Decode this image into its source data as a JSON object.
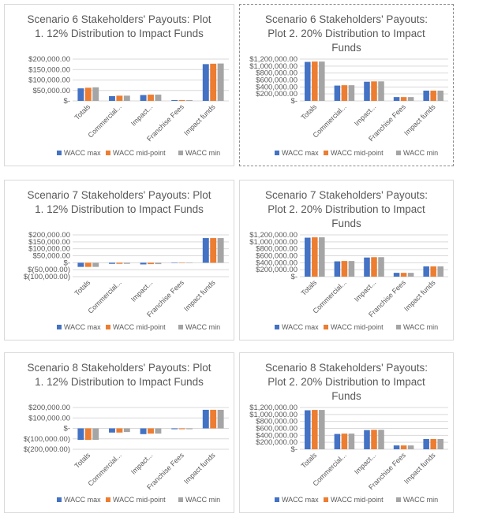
{
  "legend_colors": {
    "WACC max": "#4472c4",
    "WACC mid-point": "#ed7d31",
    "WACC min": "#a5a5a5"
  },
  "chart_data": [
    {
      "type": "bar",
      "title": "Scenario 6 Stakeholders' Payouts: Plot 1. 12% Distribution to Impact Funds",
      "categories": [
        "Totals",
        "Commercial...",
        "Impact...",
        "Franchise Fees",
        "Impact funds"
      ],
      "ylim": [
        0,
        200000
      ],
      "y_ticks": [
        0,
        50000,
        100000,
        150000,
        200000
      ],
      "grid": true,
      "legend": "bottom",
      "series": [
        {
          "name": "WACC max",
          "values": [
            60000,
            23000,
            28000,
            4000,
            176000
          ]
        },
        {
          "name": "WACC mid-point",
          "values": [
            63000,
            25000,
            30000,
            4000,
            178000
          ]
        },
        {
          "name": "WACC min",
          "values": [
            65000,
            25000,
            30000,
            4000,
            179000
          ]
        }
      ]
    },
    {
      "type": "bar",
      "title": "Scenario 6 Stakeholders' Payouts: Plot 2. 20% Distribution to Impact Funds",
      "categories": [
        "Totals",
        "Commercial...",
        "Impact...",
        "Franchise Fees",
        "Impact funds"
      ],
      "ylim": [
        0,
        1200000
      ],
      "y_ticks": [
        0,
        200000,
        400000,
        600000,
        800000,
        1000000,
        1200000
      ],
      "grid": true,
      "legend": "bottom",
      "series": [
        {
          "name": "WACC max",
          "values": [
            1120000,
            440000,
            550000,
            110000,
            295000
          ]
        },
        {
          "name": "WACC mid-point",
          "values": [
            1130000,
            450000,
            560000,
            110000,
            295000
          ]
        },
        {
          "name": "WACC min",
          "values": [
            1130000,
            450000,
            560000,
            110000,
            295000
          ]
        }
      ]
    },
    {
      "type": "bar",
      "title": "Scenario 7 Stakeholders' Payouts: Plot 1. 12% Distribution to Impact Funds",
      "categories": [
        "Totals",
        "Commercial...",
        "Impact...",
        "Franchise Fees",
        "Impact funds"
      ],
      "ylim": [
        -100000,
        200000
      ],
      "y_ticks": [
        -100000,
        -50000,
        0,
        50000,
        100000,
        150000,
        200000
      ],
      "grid": true,
      "legend": "bottom",
      "series": [
        {
          "name": "WACC max",
          "values": [
            -30000,
            -8000,
            -12000,
            0,
            177000
          ]
        },
        {
          "name": "WACC mid-point",
          "values": [
            -30000,
            -8000,
            -10000,
            0,
            177000
          ]
        },
        {
          "name": "WACC min",
          "values": [
            -30000,
            -8000,
            -10000,
            0,
            177000
          ]
        }
      ]
    },
    {
      "type": "bar",
      "title": "Scenario 7 Stakeholders' Payouts: Plot 2. 20% Distribution to Impact Funds",
      "categories": [
        "Totals",
        "Commercial...",
        "Impact...",
        "Franchise Fees",
        "Impact funds"
      ],
      "ylim": [
        0,
        1200000
      ],
      "y_ticks": [
        0,
        200000,
        400000,
        600000,
        800000,
        1000000,
        1200000
      ],
      "grid": true,
      "legend": "bottom",
      "series": [
        {
          "name": "WACC max",
          "values": [
            1120000,
            440000,
            550000,
            110000,
            295000
          ]
        },
        {
          "name": "WACC mid-point",
          "values": [
            1130000,
            450000,
            560000,
            110000,
            295000
          ]
        },
        {
          "name": "WACC min",
          "values": [
            1130000,
            450000,
            560000,
            110000,
            295000
          ]
        }
      ]
    },
    {
      "type": "bar",
      "title": "Scenario 8 Stakeholders' Payouts: Plot 1. 12% Distribution to Impact Funds",
      "categories": [
        "Totals",
        "Commercial...",
        "Impact...",
        "Franchise Fees",
        "Impact funds"
      ],
      "ylim": [
        -200000,
        200000
      ],
      "y_ticks": [
        -200000,
        -100000,
        0,
        100000,
        200000
      ],
      "grid": true,
      "legend": "bottom",
      "series": [
        {
          "name": "WACC max",
          "values": [
            -110000,
            -40000,
            -55000,
            -8000,
            178000
          ]
        },
        {
          "name": "WACC mid-point",
          "values": [
            -110000,
            -40000,
            -50000,
            -8000,
            178000
          ]
        },
        {
          "name": "WACC min",
          "values": [
            -110000,
            -35000,
            -50000,
            -8000,
            178000
          ]
        }
      ]
    },
    {
      "type": "bar",
      "title": "Scenario 8 Stakeholders' Payouts: Plot 2. 20% Distribution to Impact Funds",
      "categories": [
        "Totals",
        "Commercial...",
        "Impact...",
        "Franchise Fees",
        "Impact funds"
      ],
      "ylim": [
        0,
        1200000
      ],
      "y_ticks": [
        0,
        200000,
        400000,
        600000,
        800000,
        1000000,
        1200000
      ],
      "grid": true,
      "legend": "bottom",
      "series": [
        {
          "name": "WACC max",
          "values": [
            1120000,
            440000,
            550000,
            110000,
            295000
          ]
        },
        {
          "name": "WACC mid-point",
          "values": [
            1130000,
            450000,
            560000,
            110000,
            295000
          ]
        },
        {
          "name": "WACC min",
          "values": [
            1130000,
            450000,
            560000,
            110000,
            295000
          ]
        }
      ]
    }
  ]
}
